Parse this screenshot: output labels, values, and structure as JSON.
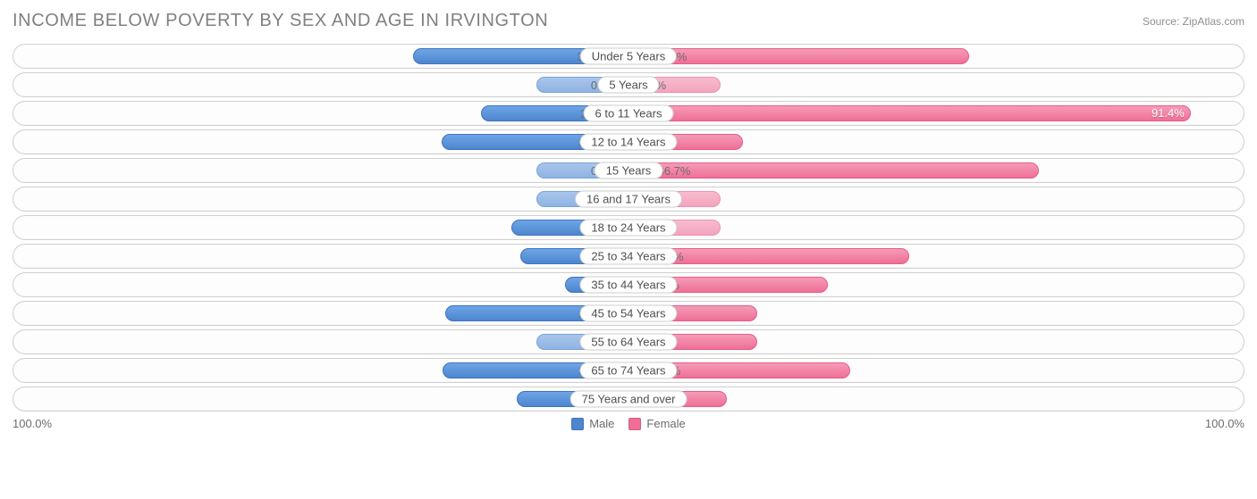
{
  "title": "INCOME BELOW POVERTY BY SEX AND AGE IN IRVINGTON",
  "source": "Source: ZipAtlas.com",
  "axis_max_label": "100.0%",
  "axis_max": 100.0,
  "zero_bar_width_pct": 15,
  "legend": {
    "male": "Male",
    "female": "Female"
  },
  "colors": {
    "male": "#4d86cf",
    "male_zero": "#8fb3e2",
    "female": "#ef6f96",
    "female_zero": "#f4a3bd",
    "title_text": "#808080",
    "label_text": "#6c6c6c",
    "border": "#cfcfcf",
    "background": "#ffffff"
  },
  "rows": [
    {
      "category": "Under 5 Years",
      "male": 35.0,
      "female": 55.4
    },
    {
      "category": "5 Years",
      "male": 0.0,
      "female": 0.0
    },
    {
      "category": "6 to 11 Years",
      "male": 24.0,
      "female": 91.4
    },
    {
      "category": "12 to 14 Years",
      "male": 30.4,
      "female": 18.6
    },
    {
      "category": "15 Years",
      "male": 0.0,
      "female": 66.7
    },
    {
      "category": "16 and 17 Years",
      "male": 0.0,
      "female": 0.0
    },
    {
      "category": "18 to 24 Years",
      "male": 19.1,
      "female": 0.0
    },
    {
      "category": "25 to 34 Years",
      "male": 17.6,
      "female": 45.6
    },
    {
      "category": "35 to 44 Years",
      "male": 10.3,
      "female": 32.4
    },
    {
      "category": "45 to 54 Years",
      "male": 29.8,
      "female": 21.0
    },
    {
      "category": "55 to 64 Years",
      "male": 0.0,
      "female": 21.0
    },
    {
      "category": "65 to 74 Years",
      "male": 30.2,
      "female": 36.1
    },
    {
      "category": "75 Years and over",
      "male": 18.2,
      "female": 16.0
    }
  ]
}
